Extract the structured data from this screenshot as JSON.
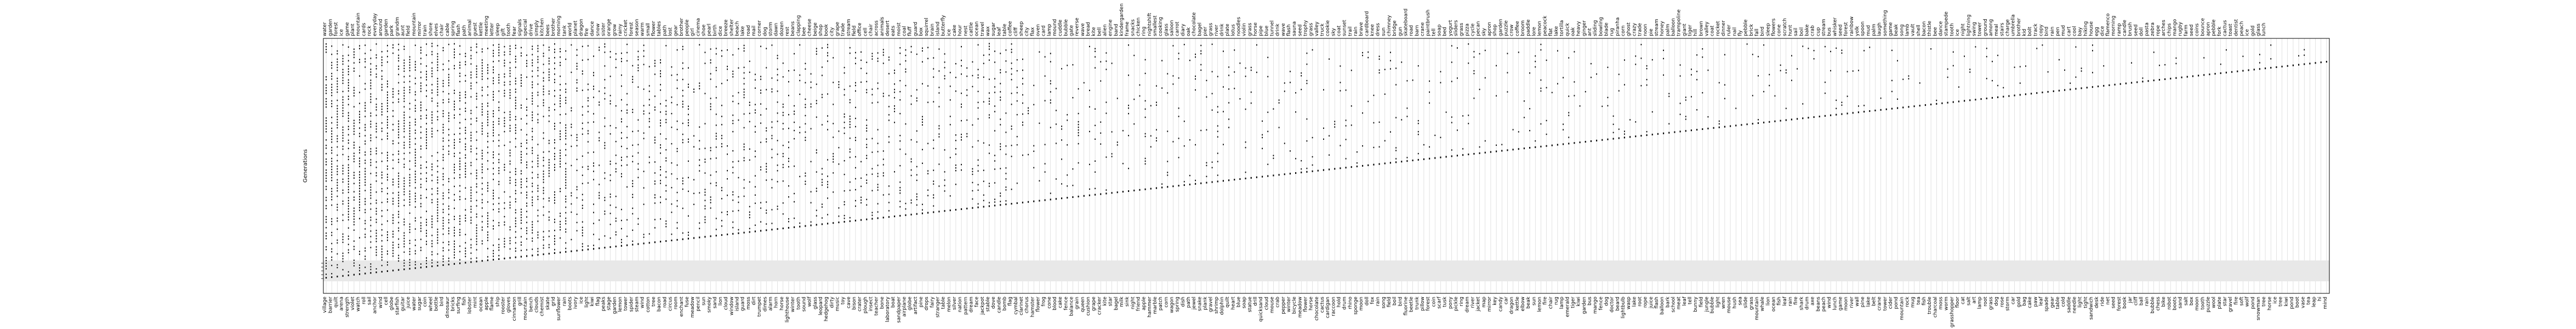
{
  "chart_data": {
    "type": "heatmap",
    "title": "",
    "xlabel": "",
    "ylabel": "Generations",
    "legend": "none",
    "grid": true,
    "top_tick_labels": [
      "water",
      "garden",
      "forest",
      "ice",
      "game",
      "plant",
      "mountain",
      "cards",
      "rock",
      "everyday",
      "around",
      "garden",
      "park",
      "grandm",
      "aunt",
      "field",
      "mountain",
      "mirror",
      "train",
      "shore",
      "elves",
      "chair",
      "cable",
      "spring",
      "flash",
      "path",
      "animal",
      "guest",
      "kettle",
      "meeting",
      "letter",
      "sleep",
      "gift",
      "tooth",
      "fear",
      "signals",
      "special",
      "drive",
      "simply",
      "kitchen",
      "bees",
      "brother",
      "morning",
      "tank",
      "world",
      "planet",
      "dragon",
      "fire",
      "dance",
      "snow",
      "sister",
      "orange",
      "grow",
      "rainy",
      "cricket",
      "forest",
      "season",
      "warm",
      "small",
      "flower",
      "tables",
      "path",
      "lost",
      "gear",
      "brother",
      "people",
      "girl",
      "cinema",
      "shoe",
      "pearl",
      "birth",
      "dice",
      "breeze",
      "shelter",
      "beach",
      "lake",
      "road",
      "mail",
      "corner",
      "dog",
      "storm",
      "dawn",
      "dozen",
      "rest",
      "beans",
      "clapping",
      "bee",
      "cheese",
      "beige",
      "shop",
      "book",
      "city",
      "grape",
      "trade",
      "stream",
      "field",
      "office",
      "cell",
      "chair",
      "across",
      "animals",
      "desert",
      "eats",
      "moist",
      "coal",
      "fluff",
      "guard",
      "box",
      "squirrel",
      "brain",
      "island",
      "butterfly",
      "ice",
      "cake",
      "hour",
      "nest",
      "cattle",
      "ocean",
      "travel",
      "wax",
      "sugar",
      "leaf",
      "table",
      "coffee",
      "cliff",
      "sheep",
      "city",
      "flax",
      "oven",
      "card",
      "lamp",
      "mound",
      "cuddle",
      "bubble",
      "gate",
      "reverse",
      "wave",
      "bread",
      "kite",
      "bell",
      "alien",
      "engine",
      "band",
      "kindergarden",
      "frame",
      "snacks",
      "chicken",
      "ring",
      "nightshift",
      "smallest",
      "cooking",
      "glass",
      "saloon",
      "carrot",
      "diary",
      "oak",
      "chocolate",
      "bagel",
      "pier",
      "grass",
      "river",
      "drink",
      "plate",
      "lotus",
      "noodles",
      "violin",
      "grass",
      "horse",
      "pipe",
      "blue",
      "tunnel",
      "drink",
      "wave",
      "flash",
      "sauna",
      "seed",
      "trophy",
      "grass",
      "valley",
      "truck",
      "cookie",
      "sky",
      "coat",
      "sunset",
      "trail",
      "rain",
      "brave",
      "cardboard",
      "knee",
      "dress",
      "sun",
      "chimney",
      "bridge",
      "gun",
      "skateboard",
      "road",
      "barn",
      "crane",
      "paintbrush",
      "tell",
      "soap",
      "bed",
      "yogurt",
      "sliders",
      "grass",
      "pizza",
      "cycle",
      "pecan",
      "sky",
      "apron",
      "shop",
      "garden",
      "puzzle",
      "crow",
      "coffee",
      "broom",
      "paddle",
      "lore",
      "lemon",
      "peacock",
      "flat",
      "lake",
      "tortilla",
      "quick",
      "oak",
      "heavy",
      "ginger",
      "ant",
      "sliding",
      "bowling",
      "blade",
      "rug",
      "piranha",
      "corn",
      "ghost",
      "crazy",
      "trade",
      "noon",
      "pie",
      "stream",
      "honey",
      "palm",
      "balloon",
      "trampoline",
      "giant",
      "tiger",
      "hill",
      "brown",
      "valley",
      "coat",
      "rocket",
      "dinner",
      "ruler",
      "nail",
      "fly",
      "pebble",
      "brick",
      "fall",
      "bird",
      "sleep",
      "flowers",
      "cone",
      "scratch",
      "hunt",
      "sail",
      "boil",
      "bake",
      "crab",
      "cup",
      "stream",
      "bus",
      "whisker",
      "seed",
      "forest",
      "rainbow",
      "yolk",
      "spoon",
      "mud",
      "palm",
      "laugh",
      "something",
      "game",
      "beak",
      "song",
      "lamb",
      "vault",
      "shell",
      "bacon",
      "thistle",
      "bee",
      "dance",
      "stampede",
      "tooth",
      "ice",
      "night",
      "lightning",
      "swing",
      "tower",
      "ground",
      "among",
      "meal",
      "stairs",
      "charge",
      "umbrella",
      "brother",
      "kid",
      "bolt",
      "track",
      "copy",
      "bird",
      "rain",
      "pen",
      "mud",
      "cart",
      "cool",
      "bay",
      "hiking",
      "house",
      "egg",
      "dice",
      "flamenco",
      "morning",
      "ramp",
      "candle",
      "brush",
      "seed",
      "doll",
      "pasta",
      "zebra",
      "rope",
      "arches",
      "chips",
      "mango",
      "rugby",
      "farm",
      "seed",
      "coins",
      "bounce",
      "apron",
      "pebble",
      "fork",
      "cactus",
      "toast",
      "dentist",
      "peach",
      "ice",
      "gold",
      "glass",
      "lunch"
    ],
    "bottom_tick_labels": [
      "village",
      "barrier",
      "quilt",
      "arena",
      "strength",
      "violet",
      "watch",
      "roll",
      "sail",
      "anchor",
      "wind",
      "cell",
      "globe",
      "starfish",
      "guitar",
      "juice",
      "water",
      "sugar",
      "coin",
      "wheel",
      "bottle",
      "bird",
      "dinosaur",
      "bricks",
      "surfing",
      "fish",
      "lobster",
      "mint",
      "ocean",
      "apple",
      "flame",
      "ship",
      "rooster",
      "gloves",
      "cinnamon",
      "grill",
      "mountain",
      "bench",
      "clouds",
      "chemist",
      "skate",
      "grid",
      "sunflower",
      "rain",
      "boots",
      "ivory",
      "ice",
      "light",
      "kiwi",
      "flag",
      "peaks",
      "stage",
      "garden",
      "lemon",
      "tower",
      "spider",
      "steam",
      "wind",
      "cotton",
      "tree",
      "bacon",
      "road",
      "circus",
      "room",
      "enchant",
      "fuse",
      "meadow",
      "pencil",
      "sun",
      "smoky",
      "sand",
      "lion",
      "cloud",
      "window",
      "island",
      "guard",
      "moss",
      "dirt",
      "trumpet",
      "dimes",
      "alarm",
      "horn",
      "horse",
      "lighthouse",
      "winter",
      "tooth",
      "sound",
      "wolf",
      "glass",
      "leopard",
      "hedgehog",
      "dirty",
      "music",
      "toy",
      "cave",
      "bison",
      "crater",
      "plough",
      "insect",
      "teacher",
      "bone",
      "laboratory",
      "boat",
      "sandpaper",
      "airplane",
      "globe",
      "artifact",
      "pine",
      "drops",
      "fairy",
      "stranger",
      "table",
      "melon",
      "silver",
      "nation",
      "pattern",
      "dream",
      "face",
      "jackpot",
      "stable",
      "dove",
      "candle",
      "bomb",
      "flag",
      "cymbal",
      "clarinet",
      "chorus",
      "hamster",
      "flower",
      "frog",
      "cone",
      "blood",
      "cake",
      "fence",
      "balance",
      "grain",
      "queen",
      "cushion",
      "grape",
      "cracker",
      "kite",
      "star",
      "bagel",
      "milk",
      "sink",
      "night",
      "friend",
      "apple",
      "hammer",
      "marble",
      "patch",
      "corn",
      "wagon",
      "spring",
      "dish",
      "path",
      "jewel",
      "snake",
      "plank",
      "gravel",
      "shrimp",
      "dolphin",
      "quilt",
      "heart",
      "blue",
      "soap",
      "statue",
      "drill",
      "quicksand",
      "cloud",
      "mouse",
      "crab",
      "pepper",
      "winter",
      "bicycle",
      "meadow",
      "flower",
      "horse",
      "chocolate",
      "cactus",
      "cardigan",
      "raccoon",
      "hold",
      "drum",
      "rhino",
      "sponge",
      "moon",
      "doll",
      "fox",
      "rain",
      "song",
      "field",
      "boil",
      "bird",
      "fluorine",
      "beetle",
      "trunk",
      "pillow",
      "forest",
      "coin",
      "scarf",
      "tusk",
      "pony",
      "pickle",
      "ring",
      "dream",
      "river",
      "jacket",
      "map",
      "mirror",
      "key",
      "candy",
      "car",
      "dragon",
      "kettle",
      "elbow",
      "beak",
      "sun",
      "lemon",
      "fire",
      "chair",
      "rug",
      "lamp",
      "emerald",
      "tiger",
      "kiwi",
      "garden",
      "bus",
      "mango",
      "fence",
      "dog",
      "doctor",
      "beard",
      "lightbulb",
      "wasp",
      "lake",
      "root",
      "rope",
      "juice",
      "flash",
      "balloon",
      "bark",
      "school",
      "meat",
      "leaf",
      "tell",
      "bunny",
      "field",
      "jungle",
      "bubble",
      "light",
      "wren",
      "mouse",
      "hush",
      "sea",
      "slide",
      "grass",
      "mountain",
      "whale",
      "lion",
      "ocean",
      "fish",
      "leaf",
      "rain",
      "fire",
      "shark",
      "drum",
      "axe",
      "beans",
      "peach",
      "wind",
      "lunch",
      "game",
      "moon",
      "river",
      "wall",
      "pine",
      "lake",
      "belt",
      "crane",
      "tower",
      "cider",
      "pond",
      "mountain",
      "rock",
      "mug",
      "tea",
      "fish",
      "trouble",
      "charcoal",
      "moss",
      "worm",
      "grasshopper",
      "floor",
      "cat",
      "salt",
      "art",
      "lamp",
      "root",
      "grass",
      "dog",
      "rose",
      "storm",
      "car",
      "gold",
      "bag",
      "cake",
      "paw",
      "leaf",
      "spade",
      "gear",
      "table",
      "cold",
      "saddle",
      "needle",
      "light",
      "tight",
      "sandwich",
      "desk",
      "ride",
      "net",
      "seed",
      "forest",
      "book",
      "jar",
      "cliff",
      "ball",
      "rain",
      "bubble",
      "chess",
      "bike",
      "robot",
      "boots",
      "sand",
      "salt",
      "box",
      "moon",
      "tooth",
      "puzzle",
      "wool",
      "plate",
      "star",
      "gravel",
      "fire",
      "soft",
      "wolf",
      "pond",
      "snowman",
      "tree",
      "horse",
      "ice",
      "tree",
      "kiwi",
      "pond",
      "boot",
      "vase",
      "tea",
      "leap",
      "hi",
      "mind"
    ]
  }
}
